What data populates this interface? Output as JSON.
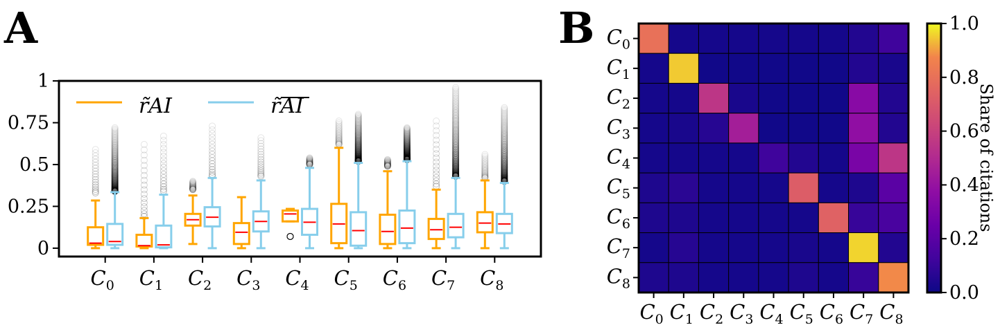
{
  "panels": {
    "a_label": "A",
    "b_label": "B"
  },
  "colors": {
    "ai": "#FFA500",
    "non_ai": "#87CEEB",
    "median": "#FF0000",
    "outlier": "#000000"
  },
  "chart_data": [
    {
      "type": "box",
      "panel": "A",
      "categories": [
        "C0",
        "C1",
        "C2",
        "C3",
        "C4",
        "C5",
        "C6",
        "C7",
        "C8"
      ],
      "category_labels": [
        {
          "base": "C",
          "sub": "0"
        },
        {
          "base": "C",
          "sub": "1"
        },
        {
          "base": "C",
          "sub": "2"
        },
        {
          "base": "C",
          "sub": "3"
        },
        {
          "base": "C",
          "sub": "4"
        },
        {
          "base": "C",
          "sub": "5"
        },
        {
          "base": "C",
          "sub": "6"
        },
        {
          "base": "C",
          "sub": "7"
        },
        {
          "base": "C",
          "sub": "8"
        }
      ],
      "ylim": [
        -0.05,
        1.0
      ],
      "yticks": [
        0,
        0.25,
        0.5,
        0.75,
        1
      ],
      "ytick_labels": [
        "0",
        "0.25",
        "0.5",
        "0.75",
        "1"
      ],
      "legend": [
        "r̃ AI",
        "r̃ AI (overlined)"
      ],
      "legend_labels": [
        "r̃AI",
        "r̃AI"
      ],
      "series": [
        {
          "name": "AI",
          "boxes": [
            {
              "whislo": 0.0,
              "q1": 0.02,
              "med": 0.03,
              "q3": 0.125,
              "whishi": 0.285,
              "fliers_from": 0.33,
              "fliers_to": 0.59,
              "dense": false
            },
            {
              "whislo": 0.0,
              "q1": 0.01,
              "med": 0.015,
              "q3": 0.08,
              "whishi": 0.18,
              "fliers_from": 0.19,
              "fliers_to": 0.62,
              "dense": false
            },
            {
              "whislo": 0.025,
              "q1": 0.135,
              "med": 0.17,
              "q3": 0.205,
              "whishi": 0.315,
              "fliers_from": 0.35,
              "fliers_to": 0.4,
              "dense": false
            },
            {
              "whislo": 0.0,
              "q1": 0.025,
              "med": 0.095,
              "q3": 0.15,
              "whishi": 0.305,
              "fliers_from": 0,
              "fliers_to": 0,
              "dense": false
            },
            {
              "whislo": 0.16,
              "q1": 0.16,
              "med": 0.205,
              "q3": 0.225,
              "whishi": 0.235,
              "fliers_from": 0.07,
              "fliers_to": 0.07,
              "dense": false
            },
            {
              "whislo": 0.0,
              "q1": 0.03,
              "med": 0.145,
              "q3": 0.265,
              "whishi": 0.6,
              "fliers_from": 0.62,
              "fliers_to": 0.76,
              "dense": false
            },
            {
              "whislo": 0.0,
              "q1": 0.025,
              "med": 0.1,
              "q3": 0.2,
              "whishi": 0.46,
              "fliers_from": 0.49,
              "fliers_to": 0.53,
              "dense": false
            },
            {
              "whislo": 0.0,
              "q1": 0.055,
              "med": 0.11,
              "q3": 0.175,
              "whishi": 0.35,
              "fliers_from": 0.37,
              "fliers_to": 0.76,
              "dense": false
            },
            {
              "whislo": 0.0,
              "q1": 0.095,
              "med": 0.15,
              "q3": 0.215,
              "whishi": 0.405,
              "fliers_from": 0.42,
              "fliers_to": 0.56,
              "dense": false
            }
          ]
        },
        {
          "name": "non-AI",
          "boxes": [
            {
              "whislo": 0.0,
              "q1": 0.02,
              "med": 0.04,
              "q3": 0.145,
              "whishi": 0.335,
              "fliers_from": 0.34,
              "fliers_to": 0.72,
              "dense": true
            },
            {
              "whislo": 0.0,
              "q1": 0.005,
              "med": 0.02,
              "q3": 0.135,
              "whishi": 0.32,
              "fliers_from": 0.34,
              "fliers_to": 0.67,
              "dense": false
            },
            {
              "whislo": 0.0,
              "q1": 0.13,
              "med": 0.185,
              "q3": 0.245,
              "whishi": 0.42,
              "fliers_from": 0.43,
              "fliers_to": 0.73,
              "dense": false
            },
            {
              "whislo": 0.0,
              "q1": 0.1,
              "med": 0.16,
              "q3": 0.22,
              "whishi": 0.405,
              "fliers_from": 0.43,
              "fliers_to": 0.66,
              "dense": false
            },
            {
              "whislo": 0.0,
              "q1": 0.08,
              "med": 0.155,
              "q3": 0.235,
              "whishi": 0.48,
              "fliers_from": 0.5,
              "fliers_to": 0.54,
              "dense": false
            },
            {
              "whislo": 0.0,
              "q1": 0.015,
              "med": 0.105,
              "q3": 0.215,
              "whishi": 0.51,
              "fliers_from": 0.52,
              "fliers_to": 0.8,
              "dense": true
            },
            {
              "whislo": 0.0,
              "q1": 0.03,
              "med": 0.12,
              "q3": 0.225,
              "whishi": 0.52,
              "fliers_from": 0.53,
              "fliers_to": 0.72,
              "dense": true
            },
            {
              "whislo": 0.0,
              "q1": 0.065,
              "med": 0.125,
              "q3": 0.205,
              "whishi": 0.42,
              "fliers_from": 0.43,
              "fliers_to": 0.96,
              "dense": true
            },
            {
              "whislo": 0.0,
              "q1": 0.09,
              "med": 0.145,
              "q3": 0.205,
              "whishi": 0.39,
              "fliers_from": 0.4,
              "fliers_to": 0.84,
              "dense": true
            }
          ]
        }
      ]
    },
    {
      "type": "heatmap",
      "panel": "B",
      "rows": [
        "C0",
        "C1",
        "C2",
        "C3",
        "C4",
        "C5",
        "C6",
        "C7",
        "C8"
      ],
      "cols": [
        "C0",
        "C1",
        "C2",
        "C3",
        "C4",
        "C5",
        "C6",
        "C7",
        "C8"
      ],
      "row_labels": [
        {
          "base": "C",
          "sub": "0"
        },
        {
          "base": "C",
          "sub": "1"
        },
        {
          "base": "C",
          "sub": "2"
        },
        {
          "base": "C",
          "sub": "3"
        },
        {
          "base": "C",
          "sub": "4"
        },
        {
          "base": "C",
          "sub": "5"
        },
        {
          "base": "C",
          "sub": "6"
        },
        {
          "base": "C",
          "sub": "7"
        },
        {
          "base": "C",
          "sub": "8"
        }
      ],
      "colormap": "plasma",
      "vmin": 0.0,
      "vmax": 1.0,
      "values": [
        [
          0.8,
          0.02,
          0.02,
          0.02,
          0.02,
          0.02,
          0.02,
          0.05,
          0.12
        ],
        [
          0.02,
          0.95,
          0.01,
          0.01,
          0.01,
          0.01,
          0.01,
          0.05,
          0.03
        ],
        [
          0.02,
          0.02,
          0.55,
          0.03,
          0.01,
          0.01,
          0.01,
          0.35,
          0.05
        ],
        [
          0.02,
          0.03,
          0.06,
          0.45,
          0.01,
          0.01,
          0.01,
          0.38,
          0.05
        ],
        [
          0.02,
          0.02,
          0.02,
          0.02,
          0.12,
          0.05,
          0.02,
          0.3,
          0.55
        ],
        [
          0.04,
          0.07,
          0.02,
          0.02,
          0.02,
          0.72,
          0.02,
          0.04,
          0.2
        ],
        [
          0.04,
          0.04,
          0.02,
          0.02,
          0.02,
          0.02,
          0.74,
          0.1,
          0.15
        ],
        [
          0.02,
          0.06,
          0.02,
          0.02,
          0.02,
          0.03,
          0.02,
          0.96,
          0.05
        ],
        [
          0.04,
          0.04,
          0.02,
          0.02,
          0.02,
          0.04,
          0.02,
          0.1,
          0.88
        ]
      ],
      "colorbar_label": "Share of citations",
      "colorbar_ticks": [
        "0.0",
        "0.2",
        "0.4",
        "0.6",
        "0.8",
        "1.0"
      ],
      "colorbar_values": [
        0.0,
        0.2,
        0.4,
        0.6,
        0.8,
        1.0
      ]
    }
  ]
}
